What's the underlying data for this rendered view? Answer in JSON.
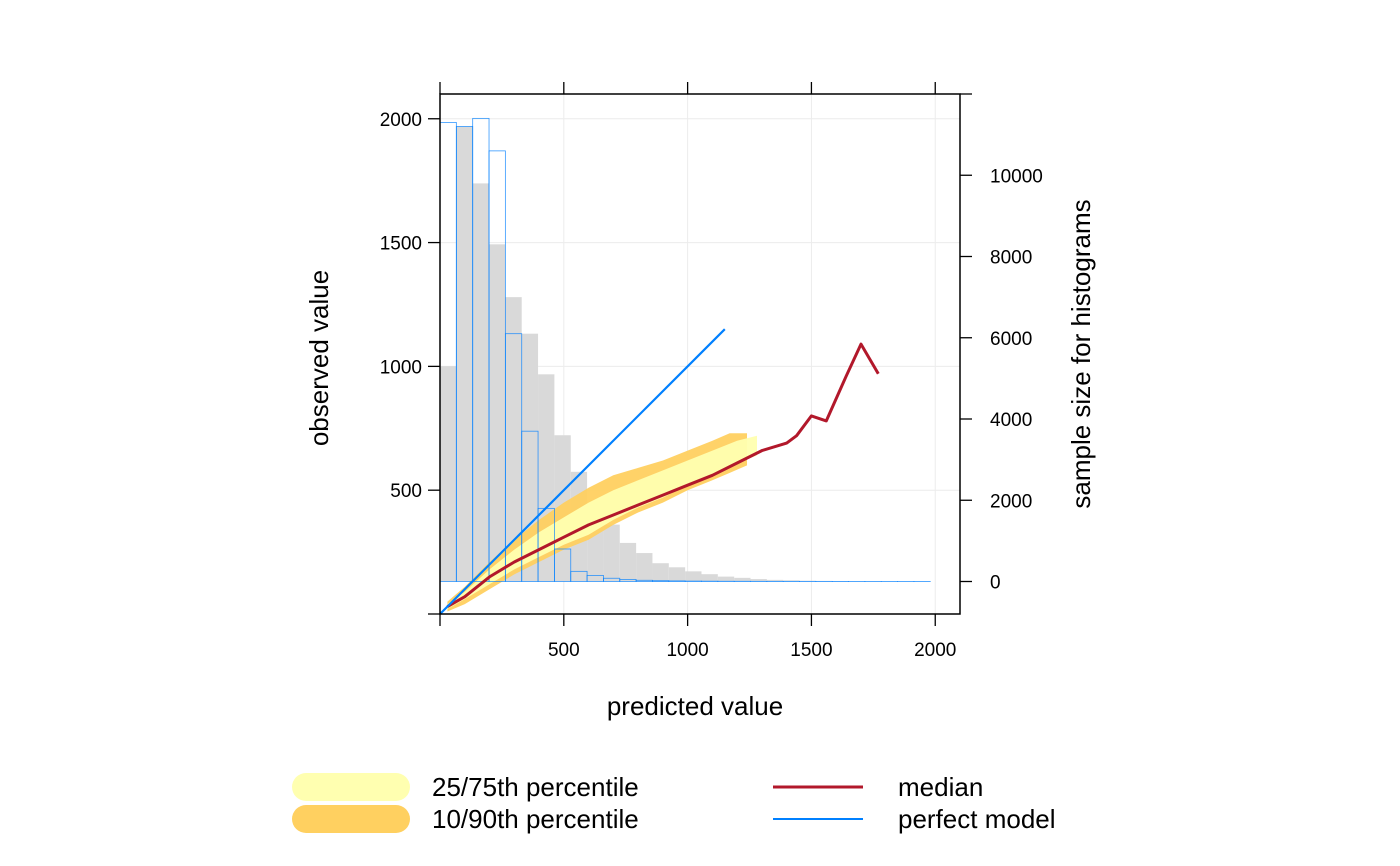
{
  "chart_data": {
    "type": "line",
    "title": "",
    "xlabel": "predicted value",
    "ylabel": "observed value",
    "ylabel_right": "sample size for histograms",
    "xlim": [
      0,
      2100
    ],
    "ylim": [
      0,
      2100
    ],
    "ylim_right": [
      -800,
      12000
    ],
    "xticks": [
      500,
      1000,
      1500,
      2000
    ],
    "yticks": [
      500,
      1000,
      1500,
      2000
    ],
    "yticks_right": [
      0,
      2000,
      4000,
      6000,
      8000,
      10000
    ],
    "grid": true,
    "histogram_bin_width": 66,
    "histograms": {
      "predicted": {
        "bins_start": [
          0,
          66,
          132,
          198,
          264,
          330,
          396,
          462,
          528,
          594,
          660,
          726,
          792,
          858,
          924,
          990,
          1056,
          1122,
          1188,
          1254,
          1320,
          1386,
          1452,
          1518,
          1584,
          1650,
          1716,
          1782,
          1848,
          1914
        ],
        "counts": [
          11300,
          11200,
          11400,
          10600,
          6100,
          3700,
          1800,
          800,
          250,
          150,
          80,
          50,
          30,
          20,
          15,
          10,
          8,
          6,
          5,
          4,
          3,
          3,
          2,
          2,
          2,
          1,
          1,
          1,
          1,
          1
        ],
        "color": "#0080ff"
      },
      "observed": {
        "bins_start": [
          0,
          66,
          132,
          198,
          264,
          330,
          396,
          462,
          528,
          594,
          660,
          726,
          792,
          858,
          924,
          990,
          1056,
          1122,
          1188,
          1254,
          1320,
          1386,
          1452,
          1518,
          1584,
          1650,
          1716,
          1782,
          1848,
          1914
        ],
        "counts": [
          5300,
          11200,
          9800,
          8300,
          7000,
          6100,
          5100,
          3600,
          2700,
          1900,
          1400,
          950,
          700,
          450,
          350,
          250,
          180,
          120,
          90,
          60,
          40,
          30,
          20,
          15,
          10,
          8,
          6,
          4,
          3,
          2
        ],
        "color": "#d9d9d9"
      }
    },
    "bands": {
      "p10_90": {
        "name": "10/90th percentile",
        "color": "#ffd060",
        "x": [
          30,
          100,
          200,
          300,
          400,
          500,
          600,
          700,
          800,
          900,
          1000,
          1100,
          1170,
          1240
        ],
        "lower": [
          10,
          40,
          100,
          160,
          210,
          260,
          300,
          360,
          410,
          450,
          500,
          540,
          570,
          600
        ],
        "upper": [
          50,
          110,
          210,
          300,
          380,
          450,
          510,
          560,
          590,
          620,
          660,
          700,
          730,
          730
        ]
      },
      "p25_75": {
        "name": "25/75th percentile",
        "color": "#ffffb0",
        "x": [
          30,
          100,
          200,
          300,
          400,
          500,
          600,
          700,
          800,
          900,
          1000,
          1100,
          1200,
          1280
        ],
        "lower": [
          20,
          60,
          120,
          180,
          230,
          280,
          320,
          380,
          430,
          470,
          520,
          560,
          610,
          640
        ],
        "upper": [
          40,
          90,
          180,
          260,
          330,
          390,
          450,
          500,
          540,
          580,
          620,
          660,
          700,
          720
        ]
      }
    },
    "series": [
      {
        "name": "median",
        "color": "#b2182b",
        "x": [
          30,
          100,
          200,
          300,
          400,
          500,
          600,
          700,
          800,
          900,
          1000,
          1100,
          1200,
          1300,
          1400,
          1440,
          1500,
          1560,
          1640,
          1700,
          1770
        ],
        "y": [
          30,
          70,
          150,
          210,
          260,
          310,
          360,
          400,
          440,
          480,
          520,
          560,
          610,
          660,
          690,
          720,
          800,
          780,
          960,
          1090,
          970
        ]
      },
      {
        "name": "perfect model",
        "color": "#0080ff",
        "x": [
          0,
          1150
        ],
        "y": [
          0,
          1150
        ]
      }
    ],
    "legend": {
      "position": "bottom",
      "items": [
        {
          "label": "25/75th percentile",
          "kind": "band",
          "color": "#ffffb0"
        },
        {
          "label": "10/90th percentile",
          "kind": "band",
          "color": "#ffd060"
        },
        {
          "label": "median",
          "kind": "line",
          "color": "#b2182b"
        },
        {
          "label": "perfect model",
          "kind": "line",
          "color": "#0080ff"
        }
      ]
    }
  }
}
